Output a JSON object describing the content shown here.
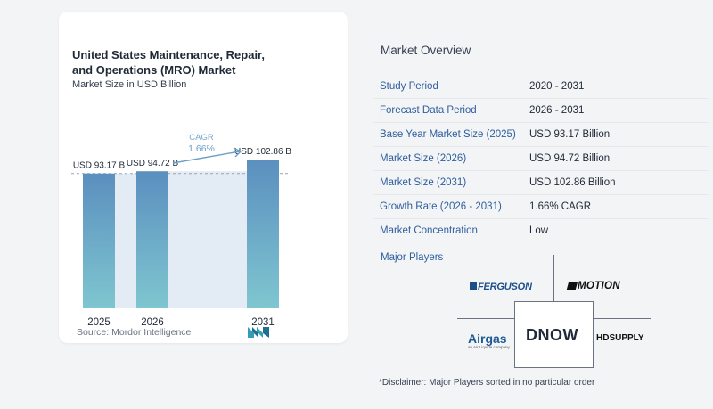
{
  "chart_data": {
    "type": "bar",
    "title": "United States Maintenance, Repair, and Operations (MRO) Market",
    "subtitle": "Market Size in USD Billion",
    "categories": [
      "2025",
      "2026",
      "2031"
    ],
    "values": [
      93.17,
      94.72,
      102.86
    ],
    "data_labels": [
      "USD 93.17 B",
      "USD 94.72 B",
      "USD 102.86 B"
    ],
    "cagr_label": "CAGR",
    "cagr_value": "1.66%",
    "colors": {
      "bar_top": "#5b8fbf",
      "bar_bottom": "#7fc6d0",
      "band": "#e3ecf5",
      "arrow": "#6a9fc9"
    }
  },
  "source": "Source:  Mordor Intelligence",
  "overview": {
    "title": "Market Overview",
    "rows": [
      {
        "label": "Study Period",
        "value": "2020 - 2031"
      },
      {
        "label": "Forecast Data Period",
        "value": "2026 - 2031"
      },
      {
        "label": "Base Year Market Size (2025)",
        "value": "USD 93.17 Billion"
      },
      {
        "label": "Market Size (2026)",
        "value": "USD 94.72 Billion"
      },
      {
        "label": "Market Size (2031)",
        "value": "USD 102.86 Billion"
      },
      {
        "label": "Growth Rate (2026 - 2031)",
        "value": "1.66% CAGR"
      },
      {
        "label": "Market Concentration",
        "value": "Low"
      }
    ]
  },
  "players": {
    "title": "Major Players",
    "logos": {
      "ferguson": "FERGUSON",
      "motion": "MOTION",
      "airgas": "Airgas",
      "airgas_tagline": "an Air Liquide company",
      "dnow": "DNOW",
      "hdsupply": "HDSUPPLY"
    }
  },
  "disclaimer": "*Disclaimer: Major Players sorted in no particular order"
}
